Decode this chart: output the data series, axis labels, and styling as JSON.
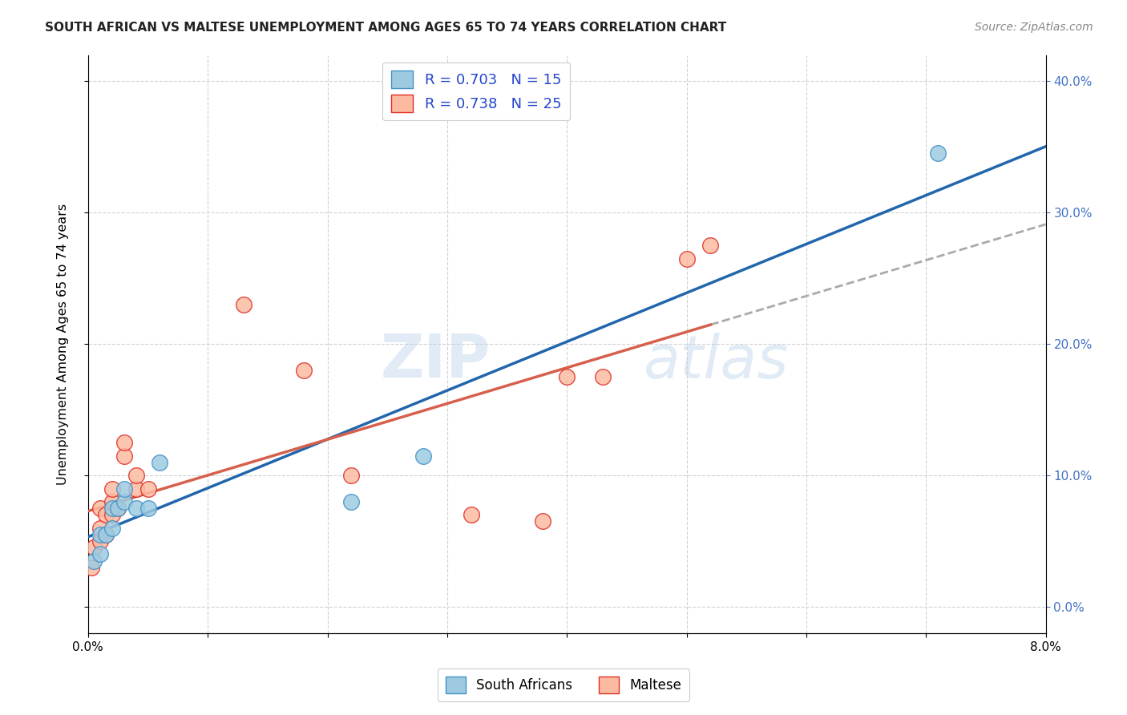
{
  "title": "SOUTH AFRICAN VS MALTESE UNEMPLOYMENT AMONG AGES 65 TO 74 YEARS CORRELATION CHART",
  "source": "Source: ZipAtlas.com",
  "ylabel": "Unemployment Among Ages 65 to 74 years",
  "xlim": [
    0.0,
    0.08
  ],
  "ylim": [
    -0.02,
    0.42
  ],
  "xticks": [
    0.0,
    0.01,
    0.02,
    0.03,
    0.04,
    0.05,
    0.06,
    0.07,
    0.08
  ],
  "yticks": [
    0.0,
    0.1,
    0.2,
    0.3,
    0.4
  ],
  "south_africans_x": [
    0.0005,
    0.001,
    0.001,
    0.0015,
    0.002,
    0.002,
    0.0025,
    0.003,
    0.003,
    0.004,
    0.005,
    0.006,
    0.022,
    0.028,
    0.071
  ],
  "south_africans_y": [
    0.035,
    0.04,
    0.055,
    0.055,
    0.06,
    0.075,
    0.075,
    0.08,
    0.09,
    0.075,
    0.075,
    0.11,
    0.08,
    0.115,
    0.345
  ],
  "maltese_x": [
    0.0003,
    0.0005,
    0.001,
    0.001,
    0.001,
    0.0015,
    0.0015,
    0.002,
    0.002,
    0.002,
    0.0025,
    0.003,
    0.003,
    0.004,
    0.004,
    0.005,
    0.013,
    0.018,
    0.022,
    0.032,
    0.038,
    0.04,
    0.043,
    0.05,
    0.052
  ],
  "maltese_y": [
    0.03,
    0.045,
    0.05,
    0.06,
    0.075,
    0.055,
    0.07,
    0.07,
    0.08,
    0.09,
    0.075,
    0.115,
    0.125,
    0.09,
    0.1,
    0.09,
    0.23,
    0.18,
    0.1,
    0.07,
    0.065,
    0.175,
    0.175,
    0.265,
    0.275
  ],
  "sa_color": "#9ECAE1",
  "sa_edge": "#4292C6",
  "maltese_color": "#FCBBA1",
  "maltese_edge": "#DE2D26",
  "sa_R": 0.703,
  "sa_N": 15,
  "maltese_R": 0.738,
  "maltese_N": 25,
  "trendline_sa_color": "#2166AC",
  "trendline_maltese_color": "#D6604D",
  "watermark_zip": "ZIP",
  "watermark_atlas": "atlas",
  "background_color": "#FFFFFF",
  "grid_color": "#CCCCCC"
}
